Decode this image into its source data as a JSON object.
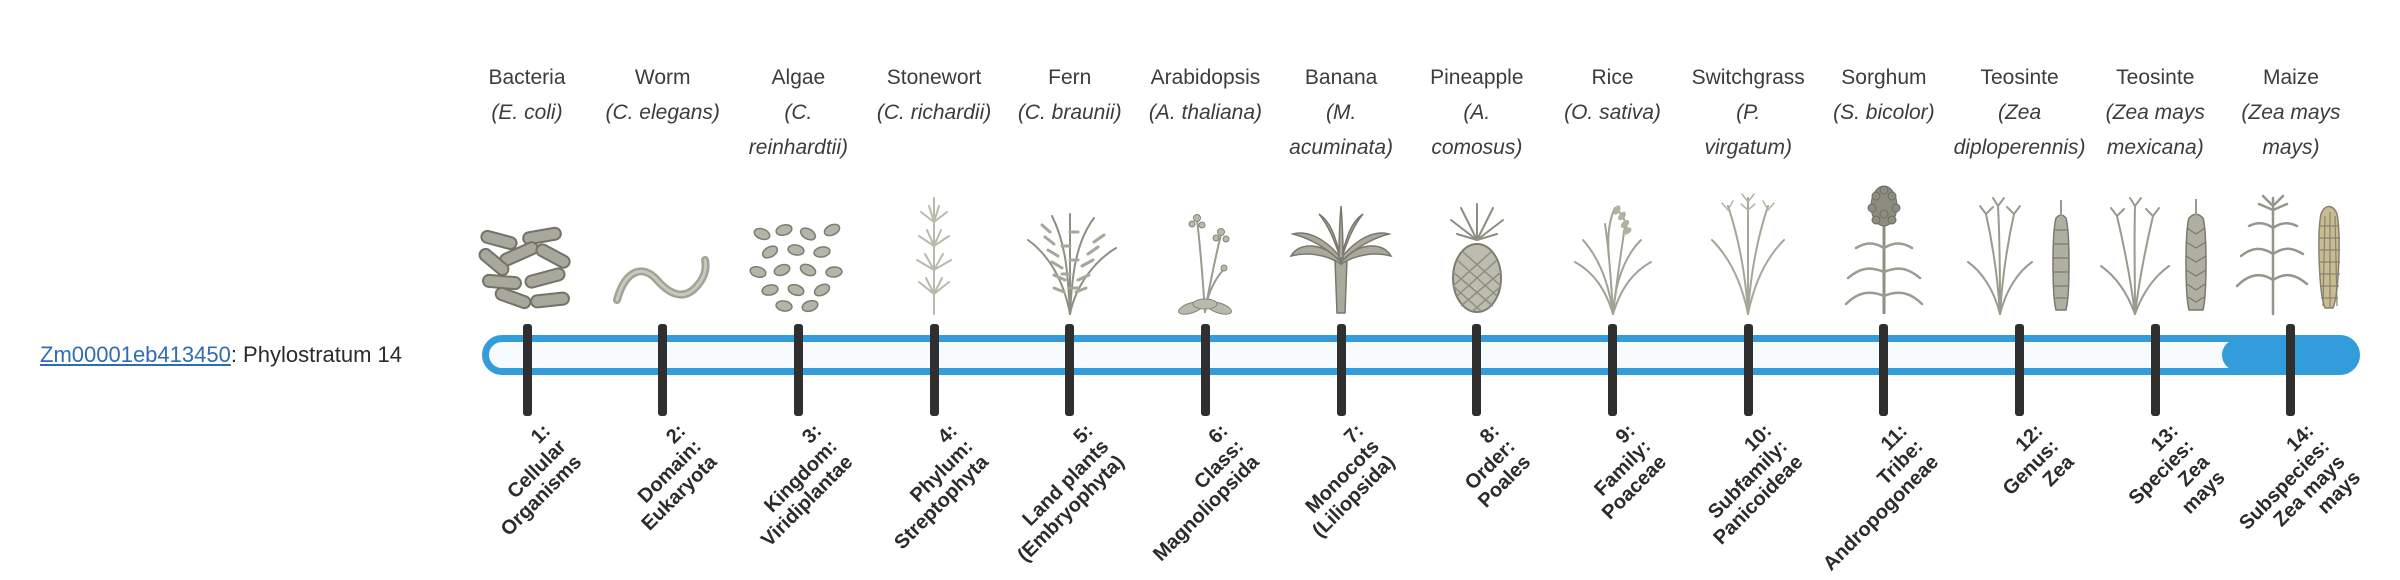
{
  "gene": {
    "id": "Zm00001eb413450",
    "suffix": ": Phylostratum 14"
  },
  "timeline": {
    "accent_color": "#339cda",
    "track_fill_color": "#f7fbfe",
    "tick_color": "#2f2f2f",
    "filled_phylostratum": 14,
    "total_phylostrata": 14
  },
  "organisms": [
    {
      "name": "Bacteria",
      "sci_lines": [
        "(E. coli)"
      ],
      "icon": "bacteria"
    },
    {
      "name": "Worm",
      "sci_lines": [
        "(C. elegans)"
      ],
      "icon": "worm"
    },
    {
      "name": "Algae",
      "sci_lines": [
        "(C.",
        "reinhardtii)"
      ],
      "icon": "algae"
    },
    {
      "name": "Stonewort",
      "sci_lines": [
        "(C. richardii)"
      ],
      "icon": "stonewort"
    },
    {
      "name": "Fern",
      "sci_lines": [
        "(C. braunii)"
      ],
      "icon": "fern"
    },
    {
      "name": "Arabidopsis",
      "sci_lines": [
        "(A. thaliana)"
      ],
      "icon": "arabidopsis"
    },
    {
      "name": "Banana",
      "sci_lines": [
        "(M.",
        "acuminata)"
      ],
      "icon": "banana"
    },
    {
      "name": "Pineapple",
      "sci_lines": [
        "(A.",
        "comosus)"
      ],
      "icon": "pineapple"
    },
    {
      "name": "Rice",
      "sci_lines": [
        "(O. sativa)"
      ],
      "icon": "rice"
    },
    {
      "name": "Switchgrass",
      "sci_lines": [
        "(P.",
        "virgatum)"
      ],
      "icon": "switchgrass"
    },
    {
      "name": "Sorghum",
      "sci_lines": [
        "(S. bicolor)"
      ],
      "icon": "sorghum"
    },
    {
      "name": "Teosinte",
      "sci_lines": [
        "(Zea",
        "diploperennis)"
      ],
      "icon": "teosinte"
    },
    {
      "name": "Teosinte",
      "sci_lines": [
        "(Zea mays",
        "mexicana)"
      ],
      "icon": "teosinte2"
    },
    {
      "name": "Maize",
      "sci_lines": [
        "(Zea mays",
        "mays)"
      ],
      "icon": "maize"
    }
  ],
  "phylostrata": [
    {
      "num": 1,
      "lines": [
        "1:",
        "Cellular",
        "Organisms"
      ]
    },
    {
      "num": 2,
      "lines": [
        "2:",
        "Domain:",
        "Eukaryota"
      ]
    },
    {
      "num": 3,
      "lines": [
        "3:",
        "Kingdom:",
        "Viridiplantae"
      ]
    },
    {
      "num": 4,
      "lines": [
        "4:",
        "Phylum:",
        "Streptophyta"
      ]
    },
    {
      "num": 5,
      "lines": [
        "5:",
        "Land plants",
        "(Embryophyta)"
      ]
    },
    {
      "num": 6,
      "lines": [
        "6:",
        "Class:",
        "Magnoliopsida"
      ]
    },
    {
      "num": 7,
      "lines": [
        "7:",
        "Monocots",
        "(Liliopsida)"
      ]
    },
    {
      "num": 8,
      "lines": [
        "8:",
        "Order:",
        "Poales"
      ]
    },
    {
      "num": 9,
      "lines": [
        "9:",
        "Family:",
        "Poaceae"
      ]
    },
    {
      "num": 10,
      "lines": [
        "10:",
        "Subfamily:",
        "Panicoideae"
      ]
    },
    {
      "num": 11,
      "lines": [
        "11:",
        "Tribe:",
        "Andropogoneae"
      ]
    },
    {
      "num": 12,
      "lines": [
        "12:",
        "Genus:",
        "Zea"
      ]
    },
    {
      "num": 13,
      "lines": [
        "13:",
        "Species:",
        "Zea",
        "mays"
      ]
    },
    {
      "num": 14,
      "lines": [
        "14:",
        "Subspecies:",
        "Zea mays",
        "mays"
      ]
    }
  ]
}
